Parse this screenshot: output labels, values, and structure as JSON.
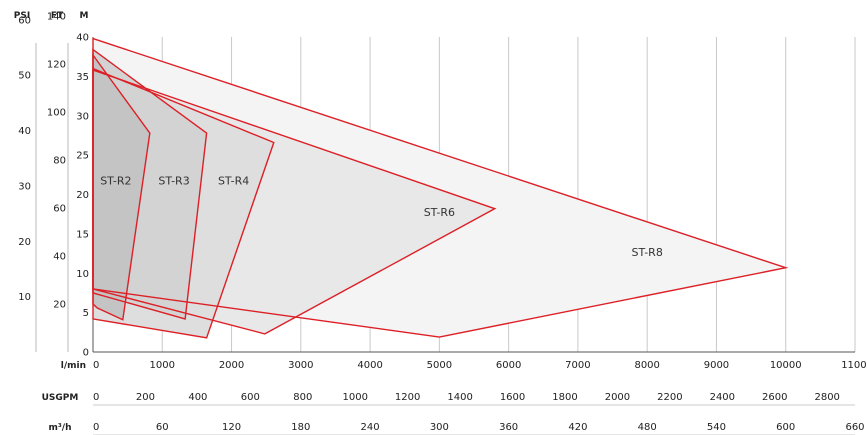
{
  "chart_data": {
    "type": "area",
    "title": "",
    "colors": {
      "outline": "#dd1f26",
      "grid": "#c9c9c9"
    },
    "y_axes": [
      {
        "label": "PSI",
        "ticks": [
          10,
          20,
          30,
          40,
          50,
          60
        ],
        "range": [
          0,
          56.9
        ]
      },
      {
        "label": "FT",
        "ticks": [
          20,
          40,
          60,
          80,
          100,
          120,
          140
        ],
        "range": [
          0,
          131.2
        ]
      },
      {
        "label": "M",
        "ticks": [
          0,
          5,
          10,
          15,
          20,
          25,
          30,
          35,
          40
        ],
        "range": [
          0,
          40
        ]
      }
    ],
    "x_axes": [
      {
        "label": "l/min",
        "ticks": [
          "0",
          "1000",
          "2000",
          "3000",
          "4000",
          "5000",
          "6000",
          "7000",
          "8000",
          "9000",
          "10000",
          "11000"
        ],
        "range": [
          0,
          11000
        ]
      },
      {
        "label": "USGPM",
        "ticks": [
          "0",
          "200",
          "400",
          "600",
          "800",
          "1000",
          "1200",
          "1400",
          "1600",
          "1800",
          "2000",
          "2200",
          "2400",
          "2600",
          "2800"
        ],
        "range": [
          0,
          2906
        ]
      },
      {
        "label": "m³/h",
        "ticks": [
          "0",
          "60",
          "120",
          "180",
          "240",
          "300",
          "360",
          "420",
          "480",
          "540",
          "600",
          "660"
        ],
        "range": [
          0,
          660
        ]
      }
    ],
    "grid": true,
    "series": [
      {
        "name": "ST-R2",
        "label_at": [
          330,
          21.3
        ],
        "fill": "#c4c4c4",
        "points": [
          [
            0,
            37.7
          ],
          [
            820,
            27.8
          ],
          [
            430,
            4.1
          ],
          [
            60,
            5.6
          ],
          [
            0,
            6.1
          ]
        ]
      },
      {
        "name": "ST-R3",
        "label_at": [
          1170,
          21.3
        ],
        "fill": "#d3d3d3",
        "points": [
          [
            0,
            38.4
          ],
          [
            1640,
            27.8
          ],
          [
            1330,
            4.2
          ],
          [
            0,
            7.5
          ]
        ]
      },
      {
        "name": "ST-R4",
        "label_at": [
          2030,
          21.3
        ],
        "fill": "#dedede",
        "points": [
          [
            0,
            36.0
          ],
          [
            2610,
            26.6
          ],
          [
            1640,
            1.8
          ],
          [
            0,
            4.2
          ]
        ]
      },
      {
        "name": "ST-R6",
        "label_at": [
          5000,
          17.3
        ],
        "fill": "#e8e8e8",
        "points": [
          [
            0,
            35.8
          ],
          [
            5800,
            18.2
          ],
          [
            2480,
            2.3
          ],
          [
            0,
            8.0
          ]
        ]
      },
      {
        "name": "ST-R8",
        "label_at": [
          8000,
          12.2
        ],
        "fill": "#f4f4f4",
        "points": [
          [
            0,
            39.8
          ],
          [
            10000,
            10.7
          ],
          [
            5000,
            1.9
          ],
          [
            0,
            8.0
          ]
        ]
      }
    ]
  }
}
